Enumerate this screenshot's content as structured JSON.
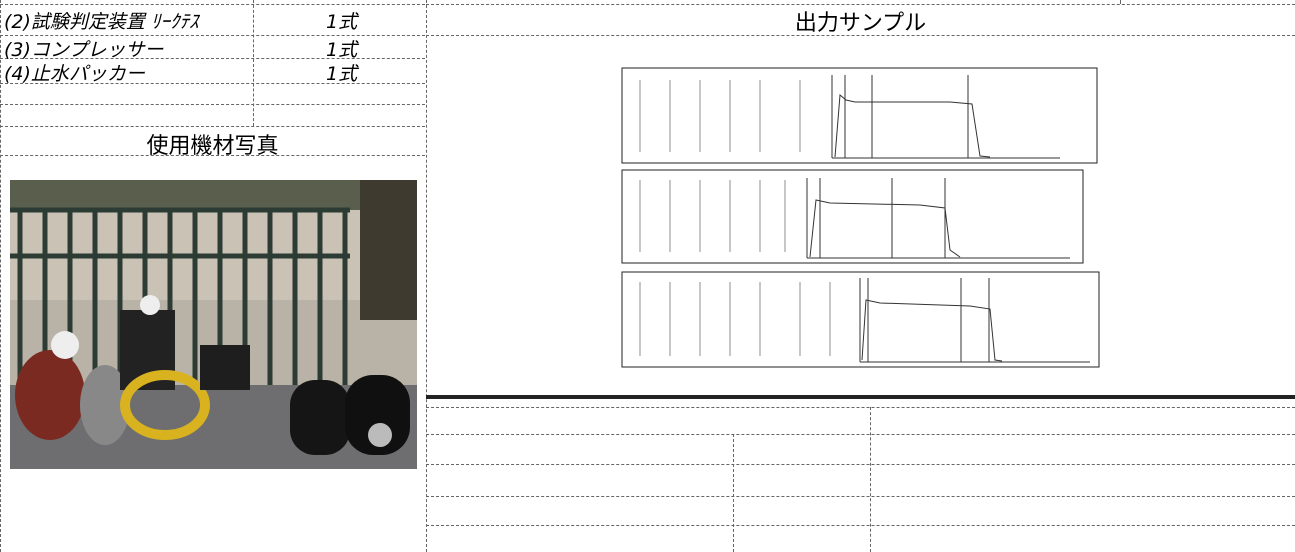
{
  "left_table": {
    "rows": [
      [
        "(2)試験判定装置 ﾘｰｸﾃｽ",
        "1式"
      ],
      [
        "(3)コンプレッサー",
        "1式"
      ],
      [
        "(4)止水パッカー",
        "1式"
      ]
    ]
  },
  "photo_section": {
    "title": "使用機材写真"
  },
  "output_section": {
    "title": "出力サンプル"
  }
}
